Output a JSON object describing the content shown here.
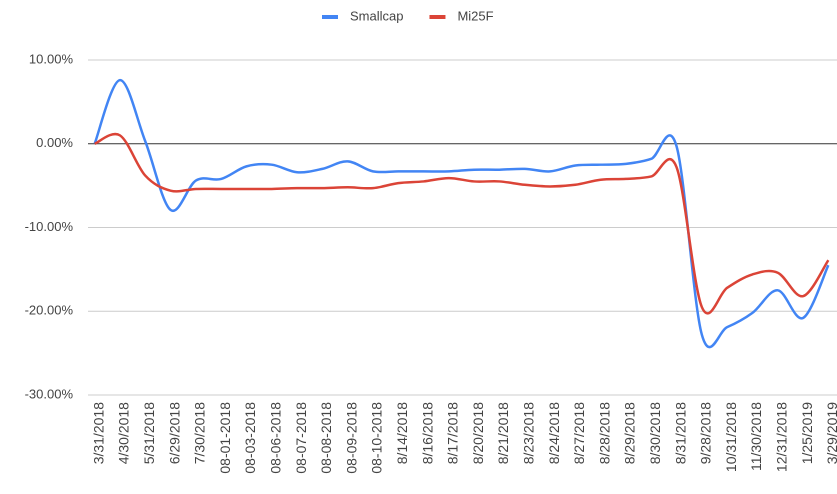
{
  "chart_data": {
    "type": "line",
    "categories": [
      "3/31/2018",
      "4/30/2018",
      "5/31/2018",
      "6/29/2018",
      "7/30/2018",
      "08-01-2018",
      "08-03-2018",
      "08-06-2018",
      "08-07-2018",
      "08-08-2018",
      "08-09-2018",
      "08-10-2018",
      "8/14/2018",
      "8/16/2018",
      "8/17/2018",
      "8/20/2018",
      "8/21/2018",
      "8/23/2018",
      "8/24/2018",
      "8/27/2018",
      "8/28/2018",
      "8/29/2018",
      "8/30/2018",
      "8/31/2018",
      "9/28/2018",
      "10/31/2018",
      "11/30/2018",
      "12/31/2018",
      "1/25/2019",
      "3/29/2019"
    ],
    "series": [
      {
        "name": "Smallcap",
        "color": "#4285f4",
        "values": [
          0,
          7.6,
          0.3,
          -7.9,
          -4.4,
          -4.2,
          -2.7,
          -2.5,
          -3.4,
          -3.0,
          -2.1,
          -3.3,
          -3.3,
          -3.3,
          -3.3,
          -3.1,
          -3.1,
          -3.0,
          -3.3,
          -2.6,
          -2.5,
          -2.4,
          -1.8,
          -0.3,
          -22.8,
          -21.9,
          -20.2,
          -17.5,
          -20.8,
          -14.5
        ]
      },
      {
        "name": "Mi25F",
        "color": "#db4437",
        "values": [
          0,
          1.0,
          -3.8,
          -5.6,
          -5.4,
          -5.4,
          -5.4,
          -5.4,
          -5.3,
          -5.3,
          -5.2,
          -5.3,
          -4.7,
          -4.5,
          -4.1,
          -4.5,
          -4.5,
          -4.9,
          -5.1,
          -4.9,
          -4.3,
          -4.2,
          -3.9,
          -2.8,
          -19.5,
          -17.2,
          -15.6,
          -15.4,
          -18.2,
          -13.9
        ]
      }
    ],
    "ylim": [
      -30,
      10
    ],
    "yticks": [
      {
        "value": -30,
        "label": "-30.00%"
      },
      {
        "value": -20,
        "label": "-20.00%"
      },
      {
        "value": -10,
        "label": "-10.00%"
      },
      {
        "value": 0,
        "label": "0.00%"
      },
      {
        "value": 10,
        "label": "10.00%"
      }
    ],
    "grid": true,
    "legend": "top"
  }
}
